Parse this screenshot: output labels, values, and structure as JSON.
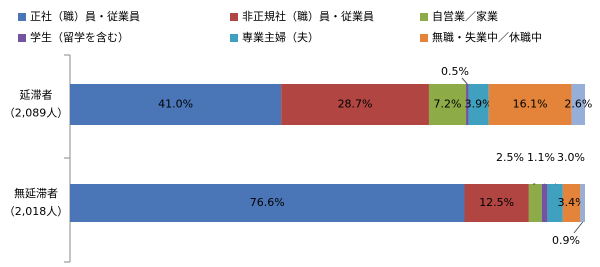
{
  "chart_data": {
    "type": "stacked-bar-horizontal",
    "categories": [
      "延滞者",
      "無延滞者"
    ],
    "category_counts": [
      "（2,089人）",
      "（2,018人）"
    ],
    "xlim": [
      0,
      100
    ],
    "series": [
      {
        "name": "正社（職）員・従業員",
        "color": "#4a76b8",
        "values": [
          41.0,
          76.6
        ],
        "value_labels": [
          "41.0%",
          "76.6%"
        ]
      },
      {
        "name": "非正規社（職）員・従業員",
        "color": "#b04542",
        "values": [
          28.7,
          12.5
        ],
        "value_labels": [
          "28.7%",
          "12.5%"
        ]
      },
      {
        "name": "自営業／家業",
        "color": "#8dab47",
        "values": [
          7.2,
          2.5
        ],
        "value_labels": [
          "7.2%",
          "2.5%"
        ]
      },
      {
        "name": "学生（留学を含む）",
        "color": "#7354a0",
        "values": [
          0.5,
          1.1
        ],
        "value_labels": [
          "0.5%",
          "1.1%"
        ]
      },
      {
        "name": "専業主婦（夫）",
        "color": "#3fa0bf",
        "values": [
          3.9,
          3.0
        ],
        "value_labels": [
          "3.9%",
          "3.0%"
        ]
      },
      {
        "name": "無職・失業中／休職中",
        "color": "#e3843a",
        "values": [
          16.1,
          3.4
        ],
        "value_labels": [
          "16.1%",
          "3.4%"
        ]
      },
      {
        "name": null,
        "color": "#96aed8",
        "values": [
          2.6,
          0.9
        ],
        "value_labels": [
          "2.6%",
          "0.9%"
        ]
      }
    ]
  }
}
